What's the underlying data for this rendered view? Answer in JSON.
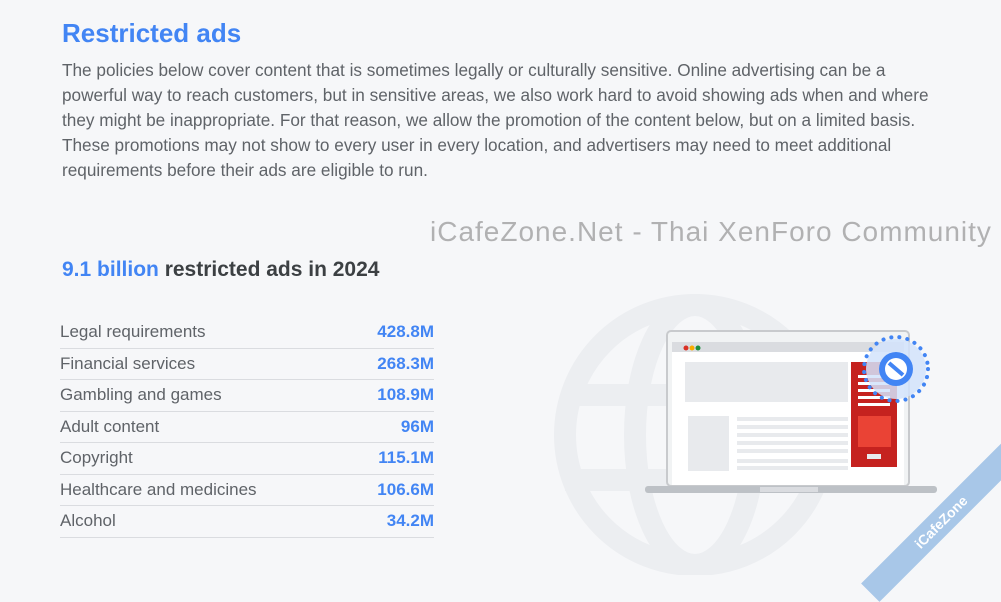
{
  "section": {
    "title": "Restricted ads",
    "intro": "The policies below cover content that is sometimes legally or culturally sensitive. Online advertising can be a powerful way to reach customers, but in sensitive areas, we also work hard to avoid showing ads when and where they might be inappropriate. For that reason, we allow the promotion of the content below, but on a limited basis. These promotions may not show to every user in every location, and advertisers may need to meet additional requirements before their ads are eligible to run."
  },
  "stat": {
    "highlight": "9.1 billion",
    "rest": " restricted ads in 2024"
  },
  "table": [
    {
      "label": "Legal requirements",
      "value": "428.8M"
    },
    {
      "label": "Financial services",
      "value": "268.3M"
    },
    {
      "label": "Gambling and games",
      "value": "108.9M"
    },
    {
      "label": "Adult content",
      "value": "96M"
    },
    {
      "label": "Copyright",
      "value": "115.1M"
    },
    {
      "label": "Healthcare and medicines",
      "value": "106.6M"
    },
    {
      "label": "Alcohol",
      "value": "34.2M"
    }
  ],
  "watermark": "iCafeZone.Net - Thai XenForo Community",
  "ribbon": "iCafeZone",
  "colors": {
    "accent": "#4285f4",
    "text": "#5f6368",
    "ad_red": "#c5221f"
  }
}
